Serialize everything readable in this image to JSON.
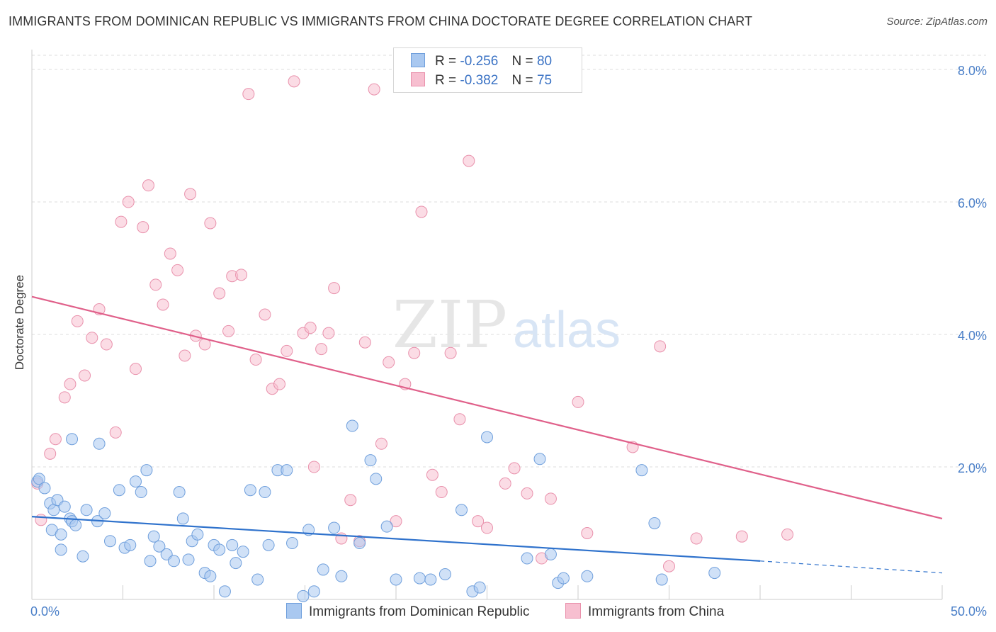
{
  "title": "IMMIGRANTS FROM DOMINICAN REPUBLIC VS IMMIGRANTS FROM CHINA DOCTORATE DEGREE CORRELATION CHART",
  "source": "Source: ZipAtlas.com",
  "watermark": {
    "zip": "ZIP",
    "atlas": "atlas"
  },
  "colors": {
    "blue_fill": "#a9c8f0",
    "blue_stroke": "#6f9fdc",
    "blue_line": "#2f72cc",
    "pink_fill": "#f7bfd0",
    "pink_stroke": "#e991ac",
    "pink_line": "#e0608a",
    "axis_label": "#4a7fc8",
    "grid": "#dddddd"
  },
  "legend": [
    {
      "r_label": "R =",
      "r_value": "-0.256",
      "n_label": "N =",
      "n_value": "80"
    },
    {
      "r_label": "R =",
      "r_value": "-0.382",
      "n_label": "N =",
      "n_value": "75"
    }
  ],
  "chart_data": {
    "type": "scatter",
    "title": "IMMIGRANTS FROM DOMINICAN REPUBLIC VS IMMIGRANTS FROM CHINA DOCTORATE DEGREE CORRELATION CHART",
    "xlabel": "",
    "ylabel": "Doctorate Degree",
    "xlim": [
      0,
      50
    ],
    "ylim": [
      0,
      8.3
    ],
    "x_tick_labels": [
      "0.0%",
      "50.0%"
    ],
    "y_ticks": [
      2,
      4,
      6,
      8
    ],
    "y_tick_labels": [
      "2.0%",
      "4.0%",
      "6.0%",
      "8.0%"
    ],
    "grid": "horizontal dashed",
    "legend_placement": "top-center",
    "series": [
      {
        "name": "Immigrants from Dominican Republic",
        "color": "#6f9fdc",
        "r": -0.256,
        "n": 80,
        "trend": {
          "x": [
            0,
            40,
            50
          ],
          "y": [
            1.25,
            0.58,
            0.4
          ],
          "solid_to_x": 40
        },
        "points": [
          [
            0.3,
            1.78
          ],
          [
            0.4,
            1.82
          ],
          [
            0.7,
            1.68
          ],
          [
            1.0,
            1.45
          ],
          [
            1.1,
            1.05
          ],
          [
            1.2,
            1.35
          ],
          [
            1.4,
            1.5
          ],
          [
            1.6,
            0.98
          ],
          [
            1.8,
            1.4
          ],
          [
            2.1,
            1.22
          ],
          [
            2.2,
            1.18
          ],
          [
            2.4,
            1.12
          ],
          [
            2.8,
            0.65
          ],
          [
            3.0,
            1.35
          ],
          [
            3.6,
            1.18
          ],
          [
            4.0,
            1.3
          ],
          [
            4.3,
            0.88
          ],
          [
            4.8,
            1.65
          ],
          [
            5.1,
            0.78
          ],
          [
            5.4,
            0.82
          ],
          [
            5.7,
            1.78
          ],
          [
            6.0,
            1.62
          ],
          [
            6.3,
            1.95
          ],
          [
            6.5,
            0.58
          ],
          [
            6.7,
            0.95
          ],
          [
            7.0,
            0.8
          ],
          [
            7.4,
            0.68
          ],
          [
            7.8,
            0.58
          ],
          [
            8.1,
            1.62
          ],
          [
            8.3,
            1.22
          ],
          [
            8.6,
            0.6
          ],
          [
            8.8,
            0.88
          ],
          [
            9.1,
            0.98
          ],
          [
            9.5,
            0.4
          ],
          [
            9.8,
            0.35
          ],
          [
            10.0,
            0.82
          ],
          [
            10.3,
            0.75
          ],
          [
            10.6,
            0.12
          ],
          [
            11.0,
            0.82
          ],
          [
            11.2,
            0.55
          ],
          [
            11.6,
            0.72
          ],
          [
            12.0,
            1.65
          ],
          [
            12.4,
            0.3
          ],
          [
            12.8,
            1.62
          ],
          [
            13.0,
            0.82
          ],
          [
            13.5,
            1.95
          ],
          [
            14.0,
            1.95
          ],
          [
            14.3,
            0.85
          ],
          [
            14.9,
            0.05
          ],
          [
            15.2,
            1.05
          ],
          [
            15.5,
            0.12
          ],
          [
            16.0,
            0.45
          ],
          [
            16.6,
            1.08
          ],
          [
            17.0,
            0.35
          ],
          [
            17.6,
            2.62
          ],
          [
            18.0,
            0.85
          ],
          [
            18.6,
            2.1
          ],
          [
            18.9,
            1.82
          ],
          [
            19.5,
            1.1
          ],
          [
            20.0,
            0.3
          ],
          [
            21.3,
            0.32
          ],
          [
            21.9,
            0.3
          ],
          [
            22.7,
            0.38
          ],
          [
            23.6,
            1.35
          ],
          [
            24.2,
            0.12
          ],
          [
            24.6,
            0.18
          ],
          [
            25.0,
            2.45
          ],
          [
            27.2,
            0.62
          ],
          [
            27.9,
            2.12
          ],
          [
            28.5,
            0.68
          ],
          [
            28.9,
            0.25
          ],
          [
            29.2,
            0.32
          ],
          [
            30.5,
            0.35
          ],
          [
            33.5,
            1.95
          ],
          [
            34.2,
            1.15
          ],
          [
            34.6,
            0.3
          ],
          [
            37.5,
            0.4
          ],
          [
            2.2,
            2.42
          ],
          [
            3.7,
            2.35
          ],
          [
            1.6,
            0.75
          ]
        ]
      },
      {
        "name": "Immigrants from China",
        "color": "#e991ac",
        "r": -0.382,
        "n": 75,
        "trend": {
          "x": [
            0,
            50
          ],
          "y": [
            4.57,
            1.22
          ]
        },
        "points": [
          [
            0.3,
            1.75
          ],
          [
            0.5,
            1.2
          ],
          [
            1.0,
            2.2
          ],
          [
            1.3,
            2.42
          ],
          [
            1.8,
            3.05
          ],
          [
            2.1,
            3.25
          ],
          [
            2.5,
            4.2
          ],
          [
            2.9,
            3.38
          ],
          [
            3.3,
            3.95
          ],
          [
            3.7,
            4.38
          ],
          [
            4.1,
            3.85
          ],
          [
            4.6,
            2.52
          ],
          [
            4.9,
            5.7
          ],
          [
            5.3,
            6.0
          ],
          [
            5.7,
            3.48
          ],
          [
            6.1,
            5.62
          ],
          [
            6.4,
            6.25
          ],
          [
            6.8,
            4.75
          ],
          [
            7.2,
            4.45
          ],
          [
            7.6,
            5.22
          ],
          [
            8.0,
            4.97
          ],
          [
            8.4,
            3.68
          ],
          [
            8.7,
            6.12
          ],
          [
            9.0,
            3.98
          ],
          [
            9.5,
            3.85
          ],
          [
            9.8,
            5.68
          ],
          [
            10.3,
            4.62
          ],
          [
            10.8,
            4.05
          ],
          [
            11.0,
            4.88
          ],
          [
            11.5,
            4.9
          ],
          [
            11.9,
            7.63
          ],
          [
            12.3,
            3.62
          ],
          [
            12.8,
            4.3
          ],
          [
            13.2,
            3.18
          ],
          [
            13.6,
            3.25
          ],
          [
            14.0,
            3.75
          ],
          [
            14.4,
            7.82
          ],
          [
            14.9,
            4.02
          ],
          [
            15.3,
            4.1
          ],
          [
            15.5,
            2.0
          ],
          [
            15.9,
            3.78
          ],
          [
            16.3,
            4.02
          ],
          [
            16.6,
            4.7
          ],
          [
            17.0,
            0.92
          ],
          [
            17.5,
            1.5
          ],
          [
            18.0,
            0.88
          ],
          [
            18.3,
            3.88
          ],
          [
            18.8,
            7.7
          ],
          [
            19.2,
            2.35
          ],
          [
            19.6,
            3.58
          ],
          [
            20.0,
            1.18
          ],
          [
            20.5,
            3.25
          ],
          [
            21.0,
            3.72
          ],
          [
            21.4,
            5.85
          ],
          [
            22.0,
            1.88
          ],
          [
            22.5,
            1.62
          ],
          [
            23.0,
            3.72
          ],
          [
            23.5,
            2.72
          ],
          [
            24.0,
            6.62
          ],
          [
            24.5,
            1.18
          ],
          [
            25.0,
            1.08
          ],
          [
            26.0,
            1.75
          ],
          [
            26.5,
            1.98
          ],
          [
            27.2,
            1.6
          ],
          [
            28.0,
            0.62
          ],
          [
            28.5,
            1.52
          ],
          [
            30.0,
            2.98
          ],
          [
            30.5,
            1.0
          ],
          [
            33.0,
            2.3
          ],
          [
            34.5,
            3.82
          ],
          [
            35.0,
            0.5
          ],
          [
            36.5,
            0.92
          ],
          [
            39.0,
            0.95
          ],
          [
            41.5,
            0.98
          ],
          [
            29.7,
            7.9
          ]
        ]
      }
    ]
  },
  "bottom_legend": [
    {
      "label": "Immigrants from Dominican Republic"
    },
    {
      "label": "Immigrants from China"
    }
  ]
}
